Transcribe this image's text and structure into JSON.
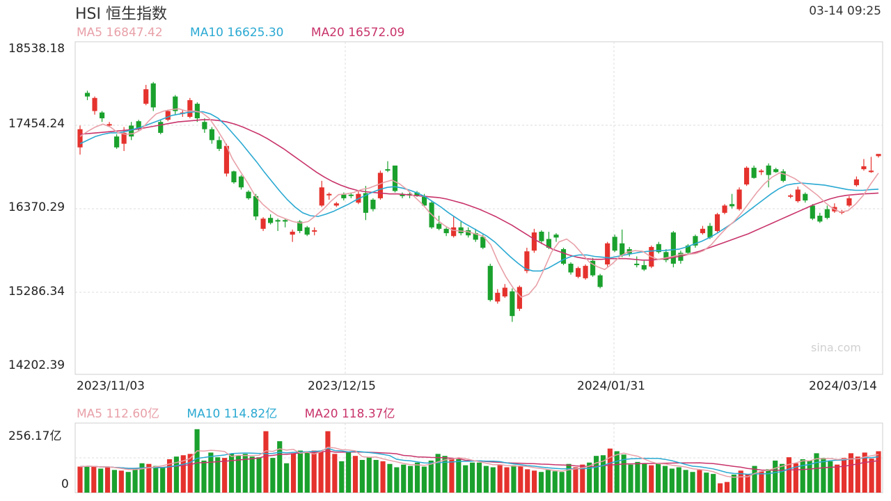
{
  "header": {
    "title": "HSI 恒生指数",
    "datetime": "03-14 09:25"
  },
  "price_ma": [
    {
      "label": "MA5 16847.42",
      "color": "#e8a0a8"
    },
    {
      "label": "MA10 16625.30",
      "color": "#2aa9d2"
    },
    {
      "label": "MA20 16572.09",
      "color": "#c8336a"
    }
  ],
  "volume_ma": [
    {
      "label": "MA5 112.60亿",
      "color": "#e8a0a8"
    },
    {
      "label": "MA10 114.82亿",
      "color": "#2aa9d2"
    },
    {
      "label": "MA20 118.37亿",
      "color": "#c8336a"
    }
  ],
  "y_ticks": [
    "18538.18",
    "17454.24",
    "16370.29",
    "15286.34",
    "14202.39"
  ],
  "volume_ticks": {
    "top": "256.17亿",
    "bottom": "0"
  },
  "x_ticks": [
    "2023/11/03",
    "2023/12/15",
    "2024/01/31",
    "2024/03/14"
  ],
  "watermark": "sina.com",
  "colors": {
    "up": "#e5322d",
    "down": "#1aa12d",
    "grid": "#dcdcdc"
  },
  "chart_data": {
    "type": "candlestick",
    "ylim": [
      14202.39,
      18538.18
    ],
    "volume_max": 256.17,
    "candles": [
      [
        17200,
        17450,
        17500,
        17100
      ],
      [
        17950,
        17900,
        17980,
        17850
      ],
      [
        17700,
        17880,
        17900,
        17650
      ],
      [
        17680,
        17600,
        17700,
        17550
      ],
      [
        17500,
        17520,
        17550,
        17480
      ],
      [
        17350,
        17200,
        17380,
        17180
      ],
      [
        17250,
        17400,
        17480,
        17150
      ],
      [
        17500,
        17350,
        17550,
        17300
      ],
      [
        17560,
        17450,
        17580,
        17420
      ],
      [
        17800,
        18000,
        18060,
        17780
      ],
      [
        18080,
        17750,
        18100,
        17700
      ],
      [
        17550,
        17400,
        17580,
        17380
      ],
      [
        17580,
        17700,
        17720,
        17560
      ],
      [
        17900,
        17700,
        17920,
        17650
      ],
      [
        17670,
        17680,
        17720,
        17620
      ],
      [
        17620,
        17850,
        17880,
        17600
      ],
      [
        17800,
        17600,
        17820,
        17550
      ],
      [
        17550,
        17450,
        17600,
        17400
      ],
      [
        17450,
        17300,
        17480,
        17250
      ],
      [
        17300,
        17180,
        17350,
        17150
      ],
      [
        16840,
        17220,
        17250,
        16800
      ],
      [
        16870,
        16720,
        16880,
        16700
      ],
      [
        16800,
        16650,
        16820,
        16620
      ],
      [
        16590,
        16500,
        16610,
        16480
      ],
      [
        16530,
        16250,
        16560,
        16200
      ],
      [
        16080,
        16220,
        16240,
        16050
      ],
      [
        16230,
        16160,
        16280,
        16140
      ],
      [
        16200,
        16180,
        16220,
        16050
      ],
      [
        16200,
        16180,
        16220,
        16100
      ],
      [
        16000,
        16040,
        16070,
        15900
      ],
      [
        16180,
        16050,
        16200,
        16020
      ],
      [
        16100,
        16000,
        16120,
        15980
      ],
      [
        16050,
        16060,
        16100,
        15990
      ],
      [
        16400,
        16650,
        16740,
        16380
      ],
      [
        16540,
        16560,
        16580,
        16480
      ],
      [
        16400,
        16430,
        16450,
        16380
      ],
      [
        16550,
        16500,
        16580,
        16470
      ],
      [
        16550,
        16540,
        16580,
        16500
      ],
      [
        16440,
        16560,
        16600,
        16420
      ],
      [
        16570,
        16300,
        16670,
        16200
      ],
      [
        16480,
        16350,
        16500,
        16320
      ],
      [
        16500,
        16850,
        16880,
        16480
      ],
      [
        16900,
        16880,
        17010,
        16860
      ],
      [
        16950,
        16600,
        16950,
        16580
      ],
      [
        16550,
        16530,
        16580,
        16500
      ],
      [
        16560,
        16540,
        16580,
        16500
      ],
      [
        16580,
        16540,
        16600,
        16520
      ],
      [
        16520,
        16400,
        16560,
        16380
      ],
      [
        16440,
        16100,
        16460,
        16080
      ],
      [
        16150,
        16080,
        16260,
        16060
      ],
      [
        16080,
        16020,
        16100,
        15980
      ],
      [
        15980,
        16100,
        16250,
        15960
      ],
      [
        16100,
        16020,
        16180,
        15990
      ],
      [
        16060,
        15990,
        16100,
        15960
      ],
      [
        16020,
        15930,
        16080,
        15900
      ],
      [
        15970,
        15820,
        16000,
        15800
      ],
      [
        15570,
        15100,
        15600,
        15080
      ],
      [
        15080,
        15200,
        15250,
        15050
      ],
      [
        15150,
        15270,
        15320,
        15130
      ],
      [
        15220,
        14880,
        15260,
        14800
      ],
      [
        14980,
        15280,
        15300,
        14950
      ],
      [
        15500,
        15770,
        15820,
        15470
      ],
      [
        15780,
        16030,
        16080,
        15750
      ],
      [
        16040,
        15910,
        16060,
        15870
      ],
      [
        15940,
        15820,
        16040,
        15800
      ],
      [
        16000,
        15960,
        16020,
        15900
      ],
      [
        15800,
        15600,
        15820,
        15580
      ],
      [
        15600,
        15480,
        15620,
        15450
      ],
      [
        15420,
        15540,
        15560,
        15400
      ],
      [
        15400,
        15570,
        15590,
        15380
      ],
      [
        15640,
        15440,
        15680,
        15420
      ],
      [
        15440,
        15280,
        15460,
        15260
      ],
      [
        15590,
        15880,
        15900,
        15560
      ],
      [
        15970,
        15780,
        16000,
        15760
      ],
      [
        15880,
        15720,
        16070,
        15690
      ],
      [
        15800,
        15740,
        15830,
        15700
      ],
      [
        15600,
        15580,
        15700,
        15550
      ],
      [
        15580,
        15520,
        15640,
        15500
      ],
      [
        15560,
        15830,
        15850,
        15540
      ],
      [
        15870,
        15760,
        15900,
        15740
      ],
      [
        15760,
        15650,
        15800,
        15620
      ],
      [
        16030,
        15600,
        16050,
        15550
      ],
      [
        15750,
        15640,
        15780,
        15600
      ],
      [
        15850,
        15750,
        15870,
        15730
      ],
      [
        15980,
        15850,
        16000,
        15820
      ],
      [
        16020,
        16080,
        16120,
        16000
      ],
      [
        16120,
        15960,
        16160,
        15940
      ],
      [
        16050,
        16280,
        16300,
        16030
      ],
      [
        16300,
        16400,
        16420,
        16280
      ],
      [
        16420,
        16390,
        16560,
        16360
      ],
      [
        16350,
        16620,
        16650,
        16330
      ],
      [
        16690,
        16920,
        16940,
        16670
      ],
      [
        16920,
        16780,
        16950,
        16770
      ],
      [
        16860,
        16880,
        16900,
        16820
      ],
      [
        16950,
        16820,
        16980,
        16650
      ],
      [
        16900,
        16860,
        16920,
        16850
      ],
      [
        16870,
        16740,
        16900,
        16720
      ],
      [
        16540,
        16540,
        16560,
        16500
      ],
      [
        16460,
        16620,
        16660,
        16440
      ],
      [
        16560,
        16470,
        16580,
        16440
      ],
      [
        16400,
        16220,
        16420,
        16200
      ],
      [
        16260,
        16180,
        16300,
        16160
      ],
      [
        16350,
        16230,
        16400,
        16210
      ],
      [
        16320,
        16380,
        16430,
        16300
      ],
      [
        16300,
        16320,
        16340,
        16280
      ],
      [
        16400,
        16500,
        16530,
        16380
      ],
      [
        16680,
        16760,
        16800,
        16660
      ],
      [
        16900,
        16940,
        17040,
        16880
      ],
      [
        16860,
        16880,
        17070,
        16850
      ],
      [
        17080,
        17110,
        17090,
        17060
      ]
    ],
    "volumes": [
      0.39,
      0.4,
      0.39,
      0.36,
      0.39,
      0.34,
      0.33,
      0.31,
      0.36,
      0.44,
      0.43,
      0.4,
      0.38,
      0.5,
      0.54,
      0.56,
      0.58,
      0.95,
      0.48,
      0.6,
      0.53,
      0.52,
      0.58,
      0.56,
      0.58,
      0.54,
      0.53,
      0.92,
      0.52,
      0.77,
      0.44,
      0.59,
      0.63,
      0.6,
      0.63,
      0.62,
      0.92,
      0.58,
      0.47,
      0.61,
      0.55,
      0.49,
      0.53,
      0.49,
      0.47,
      0.43,
      0.38,
      0.42,
      0.4,
      0.45,
      0.39,
      0.48,
      0.58,
      0.55,
      0.51,
      0.5,
      0.41,
      0.45,
      0.45,
      0.4,
      0.38,
      0.42,
      0.38,
      0.41,
      0.4,
      0.35,
      0.33,
      0.31,
      0.34,
      0.32,
      0.31,
      0.43,
      0.38,
      0.42,
      0.45,
      0.55,
      0.56,
      0.66,
      0.62,
      0.57,
      0.42,
      0.46,
      0.44,
      0.41,
      0.44,
      0.4,
      0.36,
      0.38,
      0.34,
      0.31,
      0.34,
      0.3,
      0.28,
      0.14,
      0.16,
      0.27,
      0.33,
      0.28,
      0.4,
      0.32,
      0.35,
      0.48,
      0.43,
      0.53,
      0.44,
      0.5,
      0.48,
      0.59,
      0.52,
      0.47,
      0.42,
      0.52,
      0.59,
      0.54,
      0.6,
      0.51,
      0.62
    ],
    "ma5": [
      17350,
      17420,
      17480,
      17520,
      17480,
      17400,
      17380,
      17390,
      17440,
      17560,
      17660,
      17700,
      17720,
      17730,
      17700,
      17700,
      17680,
      17600,
      17450,
      17280,
      17050,
      16880,
      16720,
      16540,
      16420,
      16330,
      16260,
      16220,
      16180,
      16160,
      16180,
      16260,
      16350,
      16460,
      16550,
      16560,
      16580,
      16620,
      16640,
      16680,
      16720,
      16750,
      16700,
      16620,
      16520,
      16420,
      16300,
      16200,
      16120,
      16060,
      16050,
      16040,
      16010,
      15980,
      15860,
      15620,
      15420,
      15260,
      15140,
      15180,
      15300,
      15520,
      15760,
      15900,
      15940,
      15860,
      15740,
      15620,
      15560,
      15520,
      15600,
      15700,
      15760,
      15780,
      15770,
      15700,
      15660,
      15680,
      15700,
      15730,
      15730,
      15740,
      15780,
      15860,
      15980,
      16090,
      16180,
      16300,
      16440,
      16580,
      16700,
      16790,
      16850,
      16820,
      16770,
      16700,
      16620,
      16540,
      16440,
      16360,
      16310,
      16330,
      16420,
      16540,
      16700,
      16847
    ],
    "ma10": [
      17250,
      17300,
      17350,
      17380,
      17400,
      17400,
      17420,
      17450,
      17480,
      17520,
      17560,
      17600,
      17640,
      17660,
      17680,
      17690,
      17690,
      17660,
      17600,
      17500,
      17380,
      17260,
      17130,
      17000,
      16860,
      16730,
      16600,
      16480,
      16380,
      16300,
      16260,
      16250,
      16280,
      16320,
      16370,
      16420,
      16480,
      16530,
      16580,
      16620,
      16650,
      16660,
      16640,
      16610,
      16570,
      16520,
      16450,
      16380,
      16300,
      16230,
      16160,
      16100,
      16040,
      15980,
      15900,
      15800,
      15700,
      15610,
      15530,
      15500,
      15500,
      15540,
      15600,
      15660,
      15700,
      15720,
      15720,
      15700,
      15690,
      15680,
      15700,
      15720,
      15740,
      15760,
      15770,
      15780,
      15780,
      15790,
      15800,
      15830,
      15870,
      15910,
      15960,
      16020,
      16090,
      16160,
      16240,
      16320,
      16400,
      16480,
      16560,
      16630,
      16680,
      16700,
      16710,
      16700,
      16690,
      16680,
      16660,
      16640,
      16620,
      16610,
      16610,
      16620,
      16625
    ],
    "ma20": [
      17380,
      17390,
      17400,
      17410,
      17420,
      17430,
      17440,
      17450,
      17470,
      17490,
      17510,
      17530,
      17550,
      17560,
      17570,
      17580,
      17580,
      17570,
      17550,
      17520,
      17480,
      17430,
      17380,
      17320,
      17250,
      17180,
      17100,
      17020,
      16940,
      16860,
      16790,
      16730,
      16680,
      16640,
      16610,
      16590,
      16580,
      16570,
      16560,
      16560,
      16550,
      16540,
      16530,
      16520,
      16510,
      16490,
      16460,
      16430,
      16390,
      16350,
      16300,
      16250,
      16190,
      16130,
      16060,
      15990,
      15920,
      15860,
      15800,
      15760,
      15720,
      15690,
      15670,
      15660,
      15660,
      15670,
      15670,
      15670,
      15660,
      15650,
      15650,
      15660,
      15670,
      15690,
      15710,
      15740,
      15770,
      15810,
      15850,
      15890,
      15930,
      15970,
      16010,
      16060,
      16110,
      16160,
      16210,
      16260,
      16310,
      16360,
      16410,
      16450,
      16490,
      16520,
      16540,
      16550,
      16560,
      16565,
      16572
    ]
  }
}
